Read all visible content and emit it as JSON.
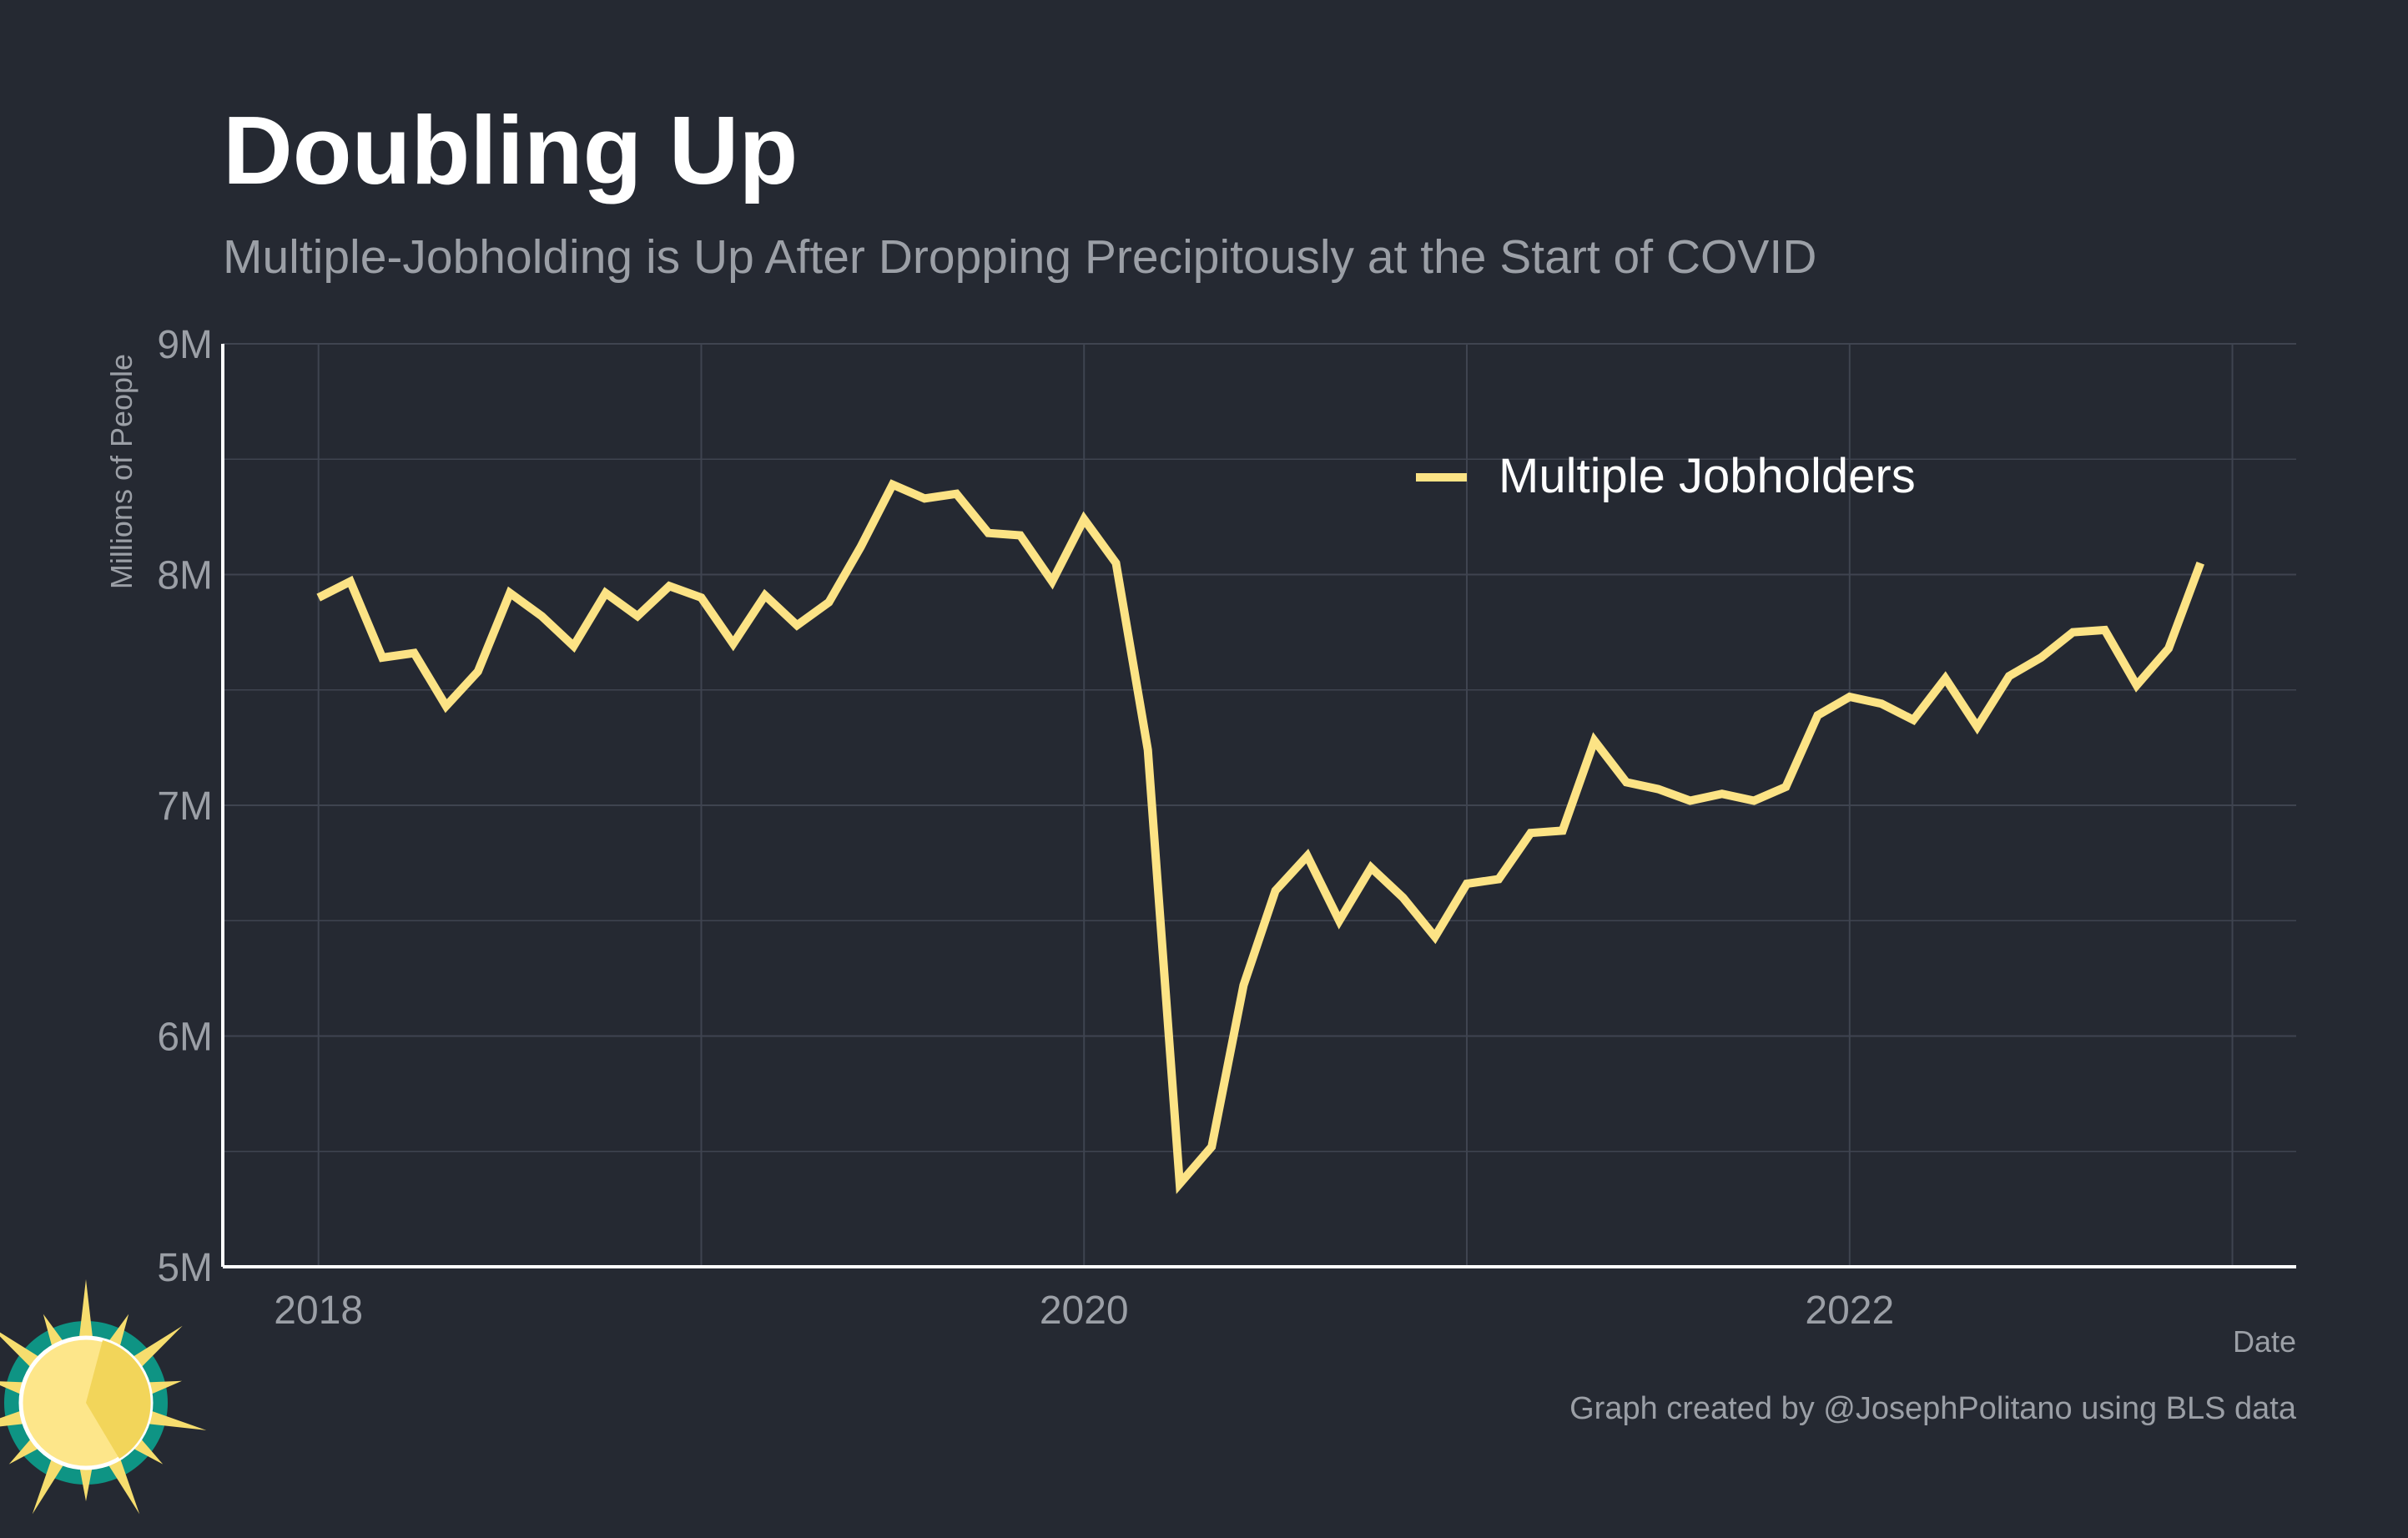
{
  "colors": {
    "background": "#252932",
    "series_line": "#FCE385",
    "grid": "#3F4450",
    "axis": "#FFFFFF",
    "title": "#FFFFFF",
    "subtitle": "#9B9FA6",
    "tick_labels": "#9B9FA6",
    "logo_sun": "#F6DD6E",
    "logo_ring": "#0E9484"
  },
  "logo": {
    "icon": "sun-logo-icon"
  },
  "chart_data": {
    "type": "line",
    "title": "Doubling Up",
    "subtitle": "Multiple-Jobholding is Up After Dropping Precipitously at the Start of COVID",
    "xlabel": "Date",
    "ylabel": "Millions of People",
    "caption": "Graph created by @JosephPolitano using BLS data",
    "legend_position": "top-right",
    "grid": true,
    "x_tick_labels": [
      "2018",
      "2020",
      "2022"
    ],
    "y_tick_labels": [
      "5M",
      "6M",
      "7M",
      "8M",
      "9M"
    ],
    "ylim": [
      5.0,
      9.0
    ],
    "xlim": [
      "2017-10",
      "2023-03"
    ],
    "x": [
      "2018-01",
      "2018-02",
      "2018-03",
      "2018-04",
      "2018-05",
      "2018-06",
      "2018-07",
      "2018-08",
      "2018-09",
      "2018-10",
      "2018-11",
      "2018-12",
      "2019-01",
      "2019-02",
      "2019-03",
      "2019-04",
      "2019-05",
      "2019-06",
      "2019-07",
      "2019-08",
      "2019-09",
      "2019-10",
      "2019-11",
      "2019-12",
      "2020-01",
      "2020-02",
      "2020-03",
      "2020-04",
      "2020-05",
      "2020-06",
      "2020-07",
      "2020-08",
      "2020-09",
      "2020-10",
      "2020-11",
      "2020-12",
      "2021-01",
      "2021-02",
      "2021-03",
      "2021-04",
      "2021-05",
      "2021-06",
      "2021-07",
      "2021-08",
      "2021-09",
      "2021-10",
      "2021-11",
      "2021-12",
      "2022-01",
      "2022-02",
      "2022-03",
      "2022-04",
      "2022-05",
      "2022-06",
      "2022-07",
      "2022-08",
      "2022-09",
      "2022-10",
      "2022-11",
      "2022-12"
    ],
    "series": [
      {
        "name": "Multiple Jobholders",
        "values": [
          7.9,
          7.97,
          7.64,
          7.66,
          7.43,
          7.58,
          7.92,
          7.82,
          7.69,
          7.92,
          7.82,
          7.95,
          7.9,
          7.7,
          7.91,
          7.78,
          7.88,
          8.12,
          8.39,
          8.33,
          8.35,
          8.18,
          8.17,
          7.97,
          8.24,
          8.05,
          7.24,
          5.36,
          5.52,
          6.22,
          6.63,
          6.78,
          6.5,
          6.73,
          6.6,
          6.43,
          6.66,
          6.68,
          6.88,
          6.89,
          7.28,
          7.1,
          7.07,
          7.02,
          7.05,
          7.02,
          7.08,
          7.39,
          7.47,
          7.44,
          7.37,
          7.55,
          7.34,
          7.56,
          7.64,
          7.75,
          7.76,
          7.52,
          7.68,
          8.05
        ]
      }
    ]
  }
}
